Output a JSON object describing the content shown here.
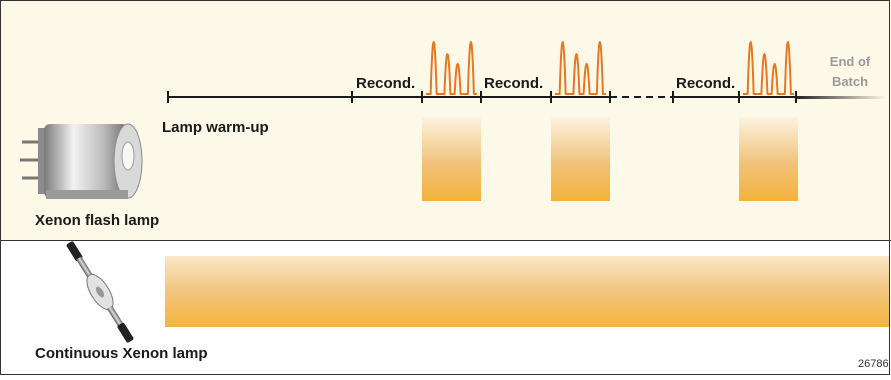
{
  "flash_section": {
    "lamp_label": "Xenon flash lamp",
    "warmup_label": "Lamp warm-up",
    "recond_labels": [
      "Recond.",
      "Recond.",
      "Recond."
    ],
    "end_of_batch": [
      "End of",
      "Batch"
    ]
  },
  "continuous_section": {
    "lamp_label": "Continuous Xenon lamp"
  },
  "figure_id": "26786",
  "colors": {
    "top_panel_bg": "#fdf9e8",
    "peak_color": "#e87722",
    "bar_light": "#fdf3e0",
    "bar_dark": "#f3b336",
    "border": "#333333"
  }
}
